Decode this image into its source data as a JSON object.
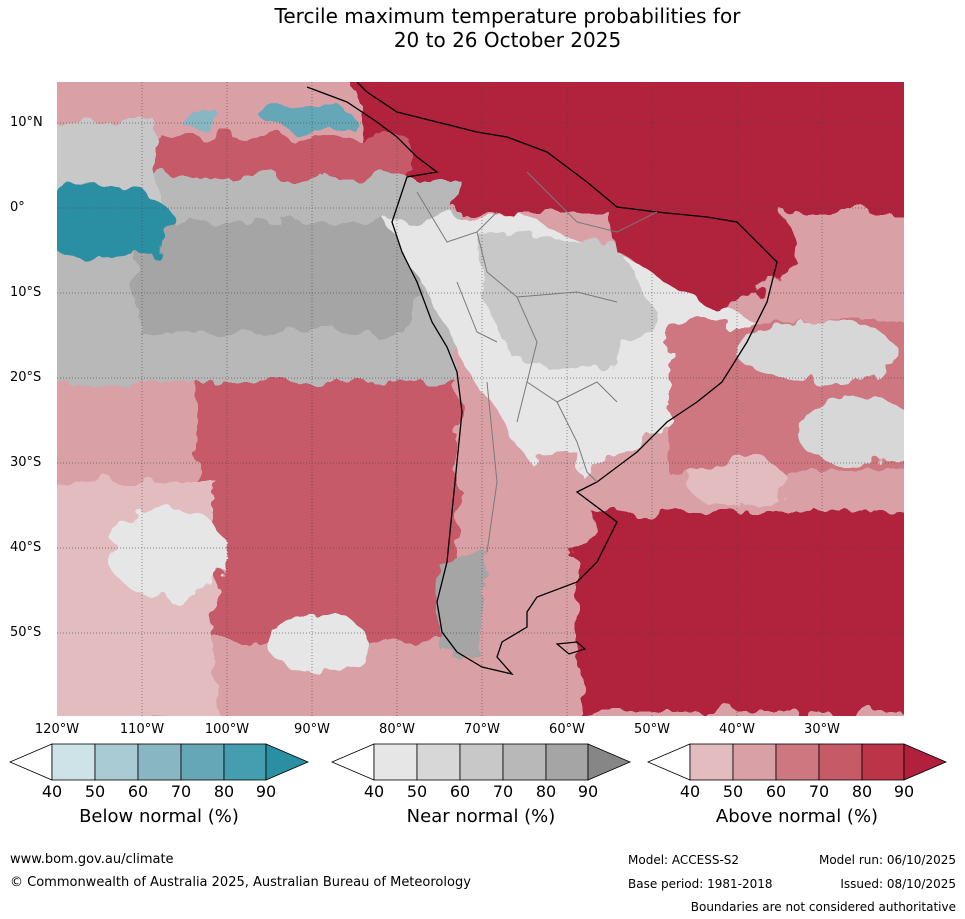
{
  "title": {
    "line1": "Tercile maximum temperature probabilities for",
    "line2": "20 to 26 October 2025"
  },
  "map": {
    "lat_labels": [
      "10°N",
      "0°",
      "10°S",
      "20°S",
      "30°S",
      "40°S",
      "50°S"
    ],
    "lon_labels": [
      "120°W",
      "110°W",
      "100°W",
      "90°W",
      "80°W",
      "70°W",
      "60°W",
      "50°W",
      "40°W",
      "30°W"
    ]
  },
  "legend": {
    "below": {
      "title": "Below normal (%)",
      "ticks": [
        "40",
        "50",
        "60",
        "70",
        "80",
        "90"
      ],
      "colors": [
        "#cde3e8",
        "#a9cbd3",
        "#88b6c3",
        "#65a7b7",
        "#459db0",
        "#2a8fa3"
      ]
    },
    "near": {
      "title": "Near normal (%)",
      "ticks": [
        "40",
        "50",
        "60",
        "70",
        "80",
        "90"
      ],
      "colors": [
        "#e6e6e6",
        "#d7d7d7",
        "#c8c8c8",
        "#b8b8b8",
        "#a5a5a5",
        "#868686"
      ]
    },
    "above": {
      "title": "Above normal (%)",
      "ticks": [
        "40",
        "50",
        "60",
        "70",
        "80",
        "90"
      ],
      "colors": [
        "#e3bcc0",
        "#d9a0a6",
        "#cf7781",
        "#c75a67",
        "#bb3448",
        "#b1203c"
      ]
    }
  },
  "footer": {
    "url": "www.bom.gov.au/climate",
    "copyright": "© Commonwealth of Australia 2025, Australian Bureau of Meteorology",
    "model": "Model: ACCESS-S2",
    "base_period": "Base period: 1981-2018",
    "model_run": "Model run: 06/10/2025",
    "issued": "Issued: 08/10/2025",
    "disclaimer": "Boundaries are not considered authoritative"
  }
}
